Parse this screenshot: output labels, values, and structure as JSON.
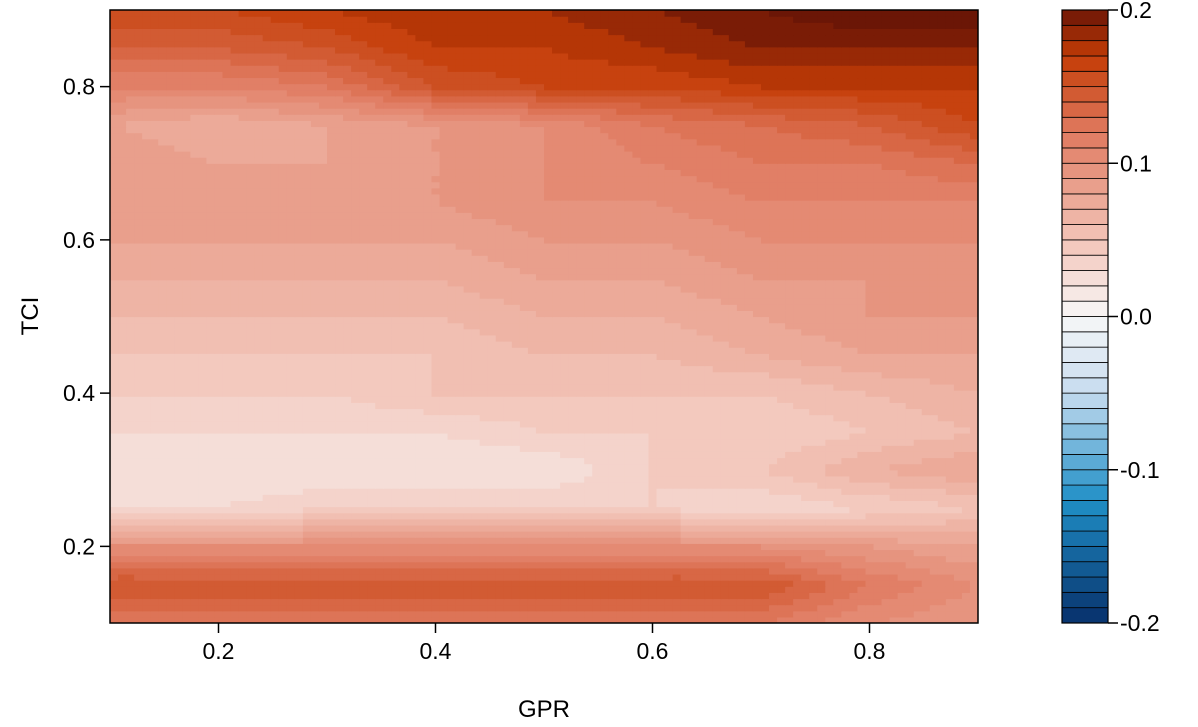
{
  "chart_data": {
    "type": "heatmap",
    "subtype": "filled-contour",
    "title": "",
    "xlabel": "GPR",
    "ylabel": "TCI",
    "xlim": [
      0.1,
      0.9
    ],
    "ylim": [
      0.1,
      0.9
    ],
    "x_ticks": [
      0.2,
      0.4,
      0.6,
      0.8
    ],
    "x_tick_labels": [
      "0.2",
      "0.4",
      "0.6",
      "0.8"
    ],
    "y_ticks": [
      0.2,
      0.4,
      0.6,
      0.8
    ],
    "y_tick_labels": [
      "0.2",
      "0.4",
      "0.6",
      "0.8"
    ],
    "grid": false,
    "x": [
      0.1,
      0.2,
      0.3,
      0.4,
      0.5,
      0.6,
      0.7,
      0.8,
      0.9
    ],
    "y": [
      0.1,
      0.15,
      0.2,
      0.25,
      0.3,
      0.35,
      0.4,
      0.45,
      0.5,
      0.55,
      0.6,
      0.65,
      0.7,
      0.75,
      0.8,
      0.85,
      0.9
    ],
    "z": [
      [
        0.12,
        0.12,
        0.12,
        0.12,
        0.12,
        0.12,
        0.12,
        0.1,
        0.09
      ],
      [
        0.15,
        0.15,
        0.15,
        0.15,
        0.15,
        0.15,
        0.15,
        0.12,
        0.1
      ],
      [
        0.1,
        0.1,
        0.1,
        0.1,
        0.1,
        0.1,
        0.1,
        0.09,
        0.08
      ],
      [
        0.03,
        0.03,
        0.04,
        0.04,
        0.04,
        0.04,
        0.03,
        0.04,
        0.05
      ],
      [
        0.02,
        0.02,
        0.02,
        0.02,
        0.02,
        0.04,
        0.05,
        0.07,
        0.08
      ],
      [
        0.03,
        0.03,
        0.03,
        0.03,
        0.04,
        0.04,
        0.04,
        0.05,
        0.06
      ],
      [
        0.04,
        0.04,
        0.04,
        0.05,
        0.05,
        0.05,
        0.05,
        0.06,
        0.07
      ],
      [
        0.05,
        0.05,
        0.05,
        0.05,
        0.06,
        0.06,
        0.07,
        0.08,
        0.08
      ],
      [
        0.06,
        0.06,
        0.06,
        0.06,
        0.07,
        0.07,
        0.08,
        0.09,
        0.09
      ],
      [
        0.07,
        0.07,
        0.07,
        0.07,
        0.08,
        0.08,
        0.09,
        0.09,
        0.1
      ],
      [
        0.08,
        0.08,
        0.08,
        0.08,
        0.09,
        0.09,
        0.1,
        0.1,
        0.1
      ],
      [
        0.09,
        0.09,
        0.09,
        0.09,
        0.1,
        0.1,
        0.11,
        0.11,
        0.11
      ],
      [
        0.09,
        0.08,
        0.08,
        0.09,
        0.1,
        0.11,
        0.12,
        0.12,
        0.13
      ],
      [
        0.08,
        0.07,
        0.08,
        0.09,
        0.1,
        0.12,
        0.13,
        0.14,
        0.16
      ],
      [
        0.11,
        0.11,
        0.12,
        0.15,
        0.16,
        0.16,
        0.17,
        0.17,
        0.17
      ],
      [
        0.14,
        0.14,
        0.15,
        0.17,
        0.17,
        0.18,
        0.19,
        0.19,
        0.19
      ],
      [
        0.16,
        0.16,
        0.17,
        0.18,
        0.18,
        0.19,
        0.2,
        0.21,
        0.21
      ]
    ],
    "colorbar": {
      "min": -0.2,
      "max": 0.2,
      "step": 0.01,
      "ticks": [
        -0.2,
        -0.1,
        0.0,
        0.1,
        0.2
      ],
      "tick_labels": [
        "-0.2",
        "-0.1",
        "0.0",
        "0.1",
        "0.2"
      ],
      "colors": {
        "low": "#08306b",
        "mid_low": "#1f8fc6",
        "light_low": "#c6dbef",
        "zero": "#f7f7f7",
        "light_high": "#f2c4b8",
        "mid_high": "#e07a60",
        "high_orange": "#c43c06",
        "high": "#6b1606"
      }
    }
  }
}
